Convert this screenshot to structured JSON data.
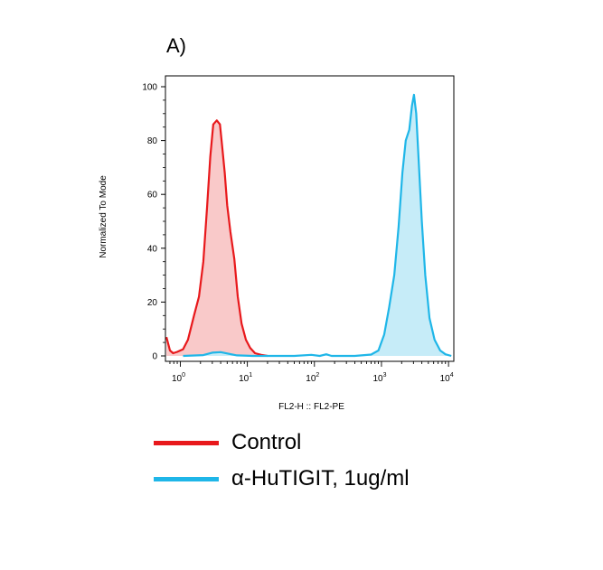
{
  "panel_label": "A)",
  "chart_data": {
    "type": "histogram",
    "title": "",
    "xlabel": "FL2-H :: FL2-PE",
    "ylabel": "Normalized To Mode",
    "x_scale": "log",
    "xlim": [
      0.6,
      12000
    ],
    "ylim": [
      0,
      100
    ],
    "y_ticks": [
      0,
      20,
      40,
      60,
      80,
      100
    ],
    "x_tick_labels": [
      {
        "value": 1,
        "label": "10",
        "exp": "0"
      },
      {
        "value": 10,
        "label": "10",
        "exp": "1"
      },
      {
        "value": 100,
        "label": "10",
        "exp": "2"
      },
      {
        "value": 1000,
        "label": "10",
        "exp": "3"
      },
      {
        "value": 10000,
        "label": "10",
        "exp": "4"
      }
    ],
    "series": [
      {
        "name": "Control",
        "color": "#e8191c",
        "fill": "#f9c9c9",
        "points": [
          [
            0.62,
            7
          ],
          [
            0.7,
            2
          ],
          [
            0.78,
            1
          ],
          [
            0.9,
            1.5
          ],
          [
            1.1,
            2.5
          ],
          [
            1.3,
            6
          ],
          [
            1.6,
            15
          ],
          [
            1.9,
            22
          ],
          [
            2.2,
            35
          ],
          [
            2.5,
            55
          ],
          [
            2.8,
            74
          ],
          [
            3.1,
            86
          ],
          [
            3.5,
            87.5
          ],
          [
            3.9,
            86
          ],
          [
            4.2,
            78
          ],
          [
            4.6,
            68
          ],
          [
            5.0,
            56
          ],
          [
            5.6,
            46
          ],
          [
            6.4,
            36
          ],
          [
            7.2,
            22
          ],
          [
            8.2,
            12
          ],
          [
            9.5,
            6
          ],
          [
            11,
            3
          ],
          [
            13,
            1
          ],
          [
            16,
            0.4
          ],
          [
            20,
            0
          ]
        ]
      },
      {
        "name": "α-HuTIGIT, 1ug/ml",
        "color": "#1fb6e8",
        "fill": "#c6ecf8",
        "points": [
          [
            1.1,
            0
          ],
          [
            2.2,
            0.3
          ],
          [
            3.0,
            1.2
          ],
          [
            4.0,
            1.4
          ],
          [
            5.2,
            0.8
          ],
          [
            7.0,
            0.2
          ],
          [
            12,
            0
          ],
          [
            50,
            0
          ],
          [
            90,
            0.4
          ],
          [
            120,
            0
          ],
          [
            150,
            0.6
          ],
          [
            180,
            0
          ],
          [
            400,
            0
          ],
          [
            700,
            0.5
          ],
          [
            900,
            2
          ],
          [
            1100,
            8
          ],
          [
            1300,
            18
          ],
          [
            1550,
            30
          ],
          [
            1800,
            48
          ],
          [
            2050,
            68
          ],
          [
            2300,
            80
          ],
          [
            2600,
            84
          ],
          [
            2850,
            93
          ],
          [
            3050,
            97
          ],
          [
            3300,
            90
          ],
          [
            3600,
            72
          ],
          [
            4000,
            50
          ],
          [
            4500,
            30
          ],
          [
            5200,
            14
          ],
          [
            6200,
            6
          ],
          [
            7500,
            2
          ],
          [
            9000,
            0.6
          ],
          [
            11000,
            0
          ]
        ]
      }
    ],
    "grid": false,
    "legend_position": "below"
  }
}
